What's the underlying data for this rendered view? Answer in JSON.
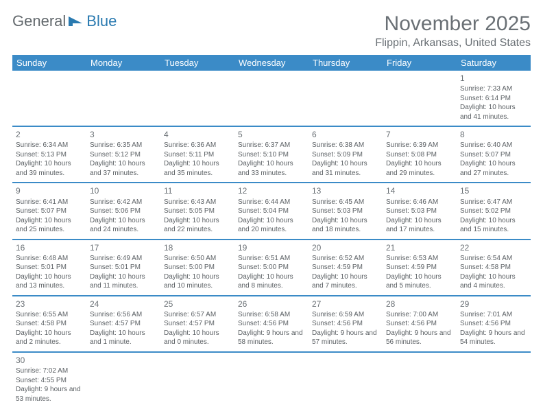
{
  "logo": {
    "part1": "General",
    "part2": "Blue"
  },
  "title": "November 2025",
  "location": "Flippin, Arkansas, United States",
  "colors": {
    "header_bg": "#3b8bc7",
    "header_text": "#ffffff",
    "body_text": "#5a5f63",
    "border": "#b8c4cc",
    "accent_border": "#3b8bc7",
    "background": "#ffffff",
    "title_color": "#6a7075",
    "logo_gray": "#63696d",
    "logo_blue": "#2a7ab0"
  },
  "day_headers": [
    "Sunday",
    "Monday",
    "Tuesday",
    "Wednesday",
    "Thursday",
    "Friday",
    "Saturday"
  ],
  "weeks": [
    [
      null,
      null,
      null,
      null,
      null,
      null,
      {
        "n": "1",
        "sunrise": "Sunrise: 7:33 AM",
        "sunset": "Sunset: 6:14 PM",
        "daylight": "Daylight: 10 hours and 41 minutes."
      }
    ],
    [
      {
        "n": "2",
        "sunrise": "Sunrise: 6:34 AM",
        "sunset": "Sunset: 5:13 PM",
        "daylight": "Daylight: 10 hours and 39 minutes."
      },
      {
        "n": "3",
        "sunrise": "Sunrise: 6:35 AM",
        "sunset": "Sunset: 5:12 PM",
        "daylight": "Daylight: 10 hours and 37 minutes."
      },
      {
        "n": "4",
        "sunrise": "Sunrise: 6:36 AM",
        "sunset": "Sunset: 5:11 PM",
        "daylight": "Daylight: 10 hours and 35 minutes."
      },
      {
        "n": "5",
        "sunrise": "Sunrise: 6:37 AM",
        "sunset": "Sunset: 5:10 PM",
        "daylight": "Daylight: 10 hours and 33 minutes."
      },
      {
        "n": "6",
        "sunrise": "Sunrise: 6:38 AM",
        "sunset": "Sunset: 5:09 PM",
        "daylight": "Daylight: 10 hours and 31 minutes."
      },
      {
        "n": "7",
        "sunrise": "Sunrise: 6:39 AM",
        "sunset": "Sunset: 5:08 PM",
        "daylight": "Daylight: 10 hours and 29 minutes."
      },
      {
        "n": "8",
        "sunrise": "Sunrise: 6:40 AM",
        "sunset": "Sunset: 5:07 PM",
        "daylight": "Daylight: 10 hours and 27 minutes."
      }
    ],
    [
      {
        "n": "9",
        "sunrise": "Sunrise: 6:41 AM",
        "sunset": "Sunset: 5:07 PM",
        "daylight": "Daylight: 10 hours and 25 minutes."
      },
      {
        "n": "10",
        "sunrise": "Sunrise: 6:42 AM",
        "sunset": "Sunset: 5:06 PM",
        "daylight": "Daylight: 10 hours and 24 minutes."
      },
      {
        "n": "11",
        "sunrise": "Sunrise: 6:43 AM",
        "sunset": "Sunset: 5:05 PM",
        "daylight": "Daylight: 10 hours and 22 minutes."
      },
      {
        "n": "12",
        "sunrise": "Sunrise: 6:44 AM",
        "sunset": "Sunset: 5:04 PM",
        "daylight": "Daylight: 10 hours and 20 minutes."
      },
      {
        "n": "13",
        "sunrise": "Sunrise: 6:45 AM",
        "sunset": "Sunset: 5:03 PM",
        "daylight": "Daylight: 10 hours and 18 minutes."
      },
      {
        "n": "14",
        "sunrise": "Sunrise: 6:46 AM",
        "sunset": "Sunset: 5:03 PM",
        "daylight": "Daylight: 10 hours and 17 minutes."
      },
      {
        "n": "15",
        "sunrise": "Sunrise: 6:47 AM",
        "sunset": "Sunset: 5:02 PM",
        "daylight": "Daylight: 10 hours and 15 minutes."
      }
    ],
    [
      {
        "n": "16",
        "sunrise": "Sunrise: 6:48 AM",
        "sunset": "Sunset: 5:01 PM",
        "daylight": "Daylight: 10 hours and 13 minutes."
      },
      {
        "n": "17",
        "sunrise": "Sunrise: 6:49 AM",
        "sunset": "Sunset: 5:01 PM",
        "daylight": "Daylight: 10 hours and 11 minutes."
      },
      {
        "n": "18",
        "sunrise": "Sunrise: 6:50 AM",
        "sunset": "Sunset: 5:00 PM",
        "daylight": "Daylight: 10 hours and 10 minutes."
      },
      {
        "n": "19",
        "sunrise": "Sunrise: 6:51 AM",
        "sunset": "Sunset: 5:00 PM",
        "daylight": "Daylight: 10 hours and 8 minutes."
      },
      {
        "n": "20",
        "sunrise": "Sunrise: 6:52 AM",
        "sunset": "Sunset: 4:59 PM",
        "daylight": "Daylight: 10 hours and 7 minutes."
      },
      {
        "n": "21",
        "sunrise": "Sunrise: 6:53 AM",
        "sunset": "Sunset: 4:59 PM",
        "daylight": "Daylight: 10 hours and 5 minutes."
      },
      {
        "n": "22",
        "sunrise": "Sunrise: 6:54 AM",
        "sunset": "Sunset: 4:58 PM",
        "daylight": "Daylight: 10 hours and 4 minutes."
      }
    ],
    [
      {
        "n": "23",
        "sunrise": "Sunrise: 6:55 AM",
        "sunset": "Sunset: 4:58 PM",
        "daylight": "Daylight: 10 hours and 2 minutes."
      },
      {
        "n": "24",
        "sunrise": "Sunrise: 6:56 AM",
        "sunset": "Sunset: 4:57 PM",
        "daylight": "Daylight: 10 hours and 1 minute."
      },
      {
        "n": "25",
        "sunrise": "Sunrise: 6:57 AM",
        "sunset": "Sunset: 4:57 PM",
        "daylight": "Daylight: 10 hours and 0 minutes."
      },
      {
        "n": "26",
        "sunrise": "Sunrise: 6:58 AM",
        "sunset": "Sunset: 4:56 PM",
        "daylight": "Daylight: 9 hours and 58 minutes."
      },
      {
        "n": "27",
        "sunrise": "Sunrise: 6:59 AM",
        "sunset": "Sunset: 4:56 PM",
        "daylight": "Daylight: 9 hours and 57 minutes."
      },
      {
        "n": "28",
        "sunrise": "Sunrise: 7:00 AM",
        "sunset": "Sunset: 4:56 PM",
        "daylight": "Daylight: 9 hours and 56 minutes."
      },
      {
        "n": "29",
        "sunrise": "Sunrise: 7:01 AM",
        "sunset": "Sunset: 4:56 PM",
        "daylight": "Daylight: 9 hours and 54 minutes."
      }
    ],
    [
      {
        "n": "30",
        "sunrise": "Sunrise: 7:02 AM",
        "sunset": "Sunset: 4:55 PM",
        "daylight": "Daylight: 9 hours and 53 minutes."
      },
      null,
      null,
      null,
      null,
      null,
      null
    ]
  ]
}
